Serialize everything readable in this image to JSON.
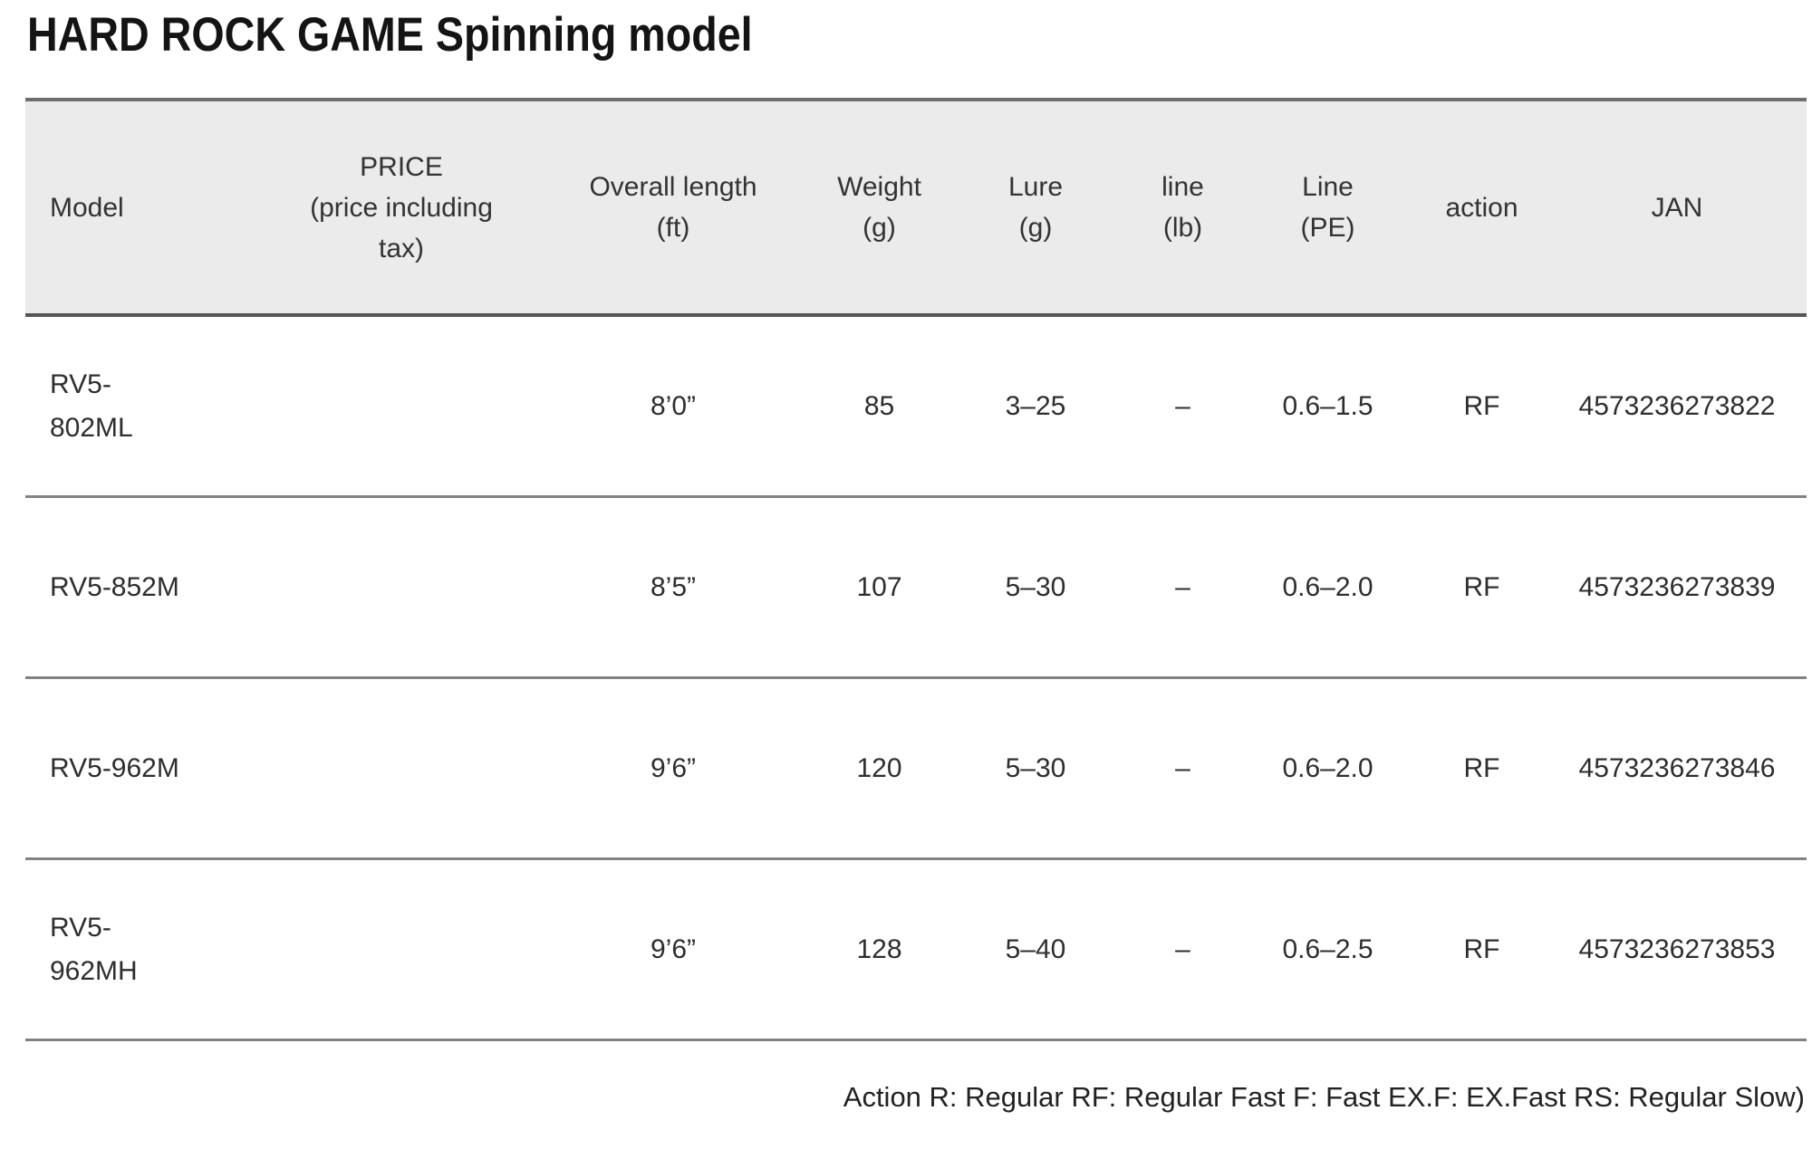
{
  "page": {
    "title": "HARD ROCK GAME Spinning model",
    "footnote": "Action R: Regular RF: Regular Fast F: Fast EX.F: EX.Fast RS: Regular Slow)"
  },
  "table": {
    "headers": {
      "model": "Model",
      "price": "PRICE\n(price including\ntax)",
      "length": "Overall length\n(ft)",
      "weight": "Weight\n(g)",
      "lure": "Lure\n(g)",
      "line_lb": "line\n(lb)",
      "line_pe": "Line\n(PE)",
      "action": "action",
      "jan": "JAN"
    },
    "rows": [
      {
        "model": "RV5-802ML",
        "price": "",
        "length": "8’0”",
        "weight": "85",
        "lure": "3–25",
        "line_lb": "–",
        "line_pe": "0.6–1.5",
        "action": "RF",
        "jan": "4573236273822"
      },
      {
        "model": "RV5-852M",
        "price": "",
        "length": "8’5”",
        "weight": "107",
        "lure": "5–30",
        "line_lb": "–",
        "line_pe": "0.6–2.0",
        "action": "RF",
        "jan": "4573236273839"
      },
      {
        "model": "RV5-962M",
        "price": "",
        "length": "9’6”",
        "weight": "120",
        "lure": "5–30",
        "line_lb": "–",
        "line_pe": "0.6–2.0",
        "action": "RF",
        "jan": "4573236273846"
      },
      {
        "model": "RV5-962MH",
        "price": "",
        "length": "9’6”",
        "weight": "128",
        "lure": "5–40",
        "line_lb": "–",
        "line_pe": "0.6–2.5",
        "action": "RF",
        "jan": "4573236273853"
      }
    ]
  }
}
